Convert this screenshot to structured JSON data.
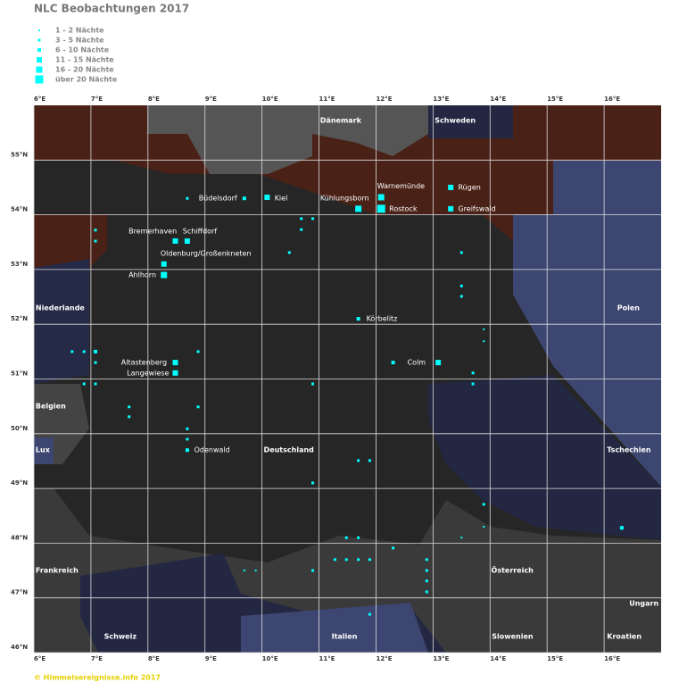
{
  "title": "NLC Beobachtungen 2017",
  "legend": [
    "1 - 2 Nächte",
    "3 - 5 Nächte",
    "6 - 10 Nächte",
    "11 - 15 Nächte",
    "16 - 20 Nächte",
    "über 20 Nächte"
  ],
  "footer": "© Himmelsereignisse.info 2017",
  "lonlim": [
    6,
    17
  ],
  "latlim": [
    46,
    56
  ],
  "lonticks": [
    {
      "value": 6,
      "label": "6°E"
    },
    {
      "value": 7,
      "label": "7°E"
    },
    {
      "value": 8,
      "label": "8°E"
    },
    {
      "value": 9,
      "label": "9°E"
    },
    {
      "value": 10,
      "label": "10°E"
    },
    {
      "value": 11,
      "label": "11°E"
    },
    {
      "value": 12,
      "label": "12°E"
    },
    {
      "value": 13,
      "label": "13°E"
    },
    {
      "value": 14,
      "label": "14°E"
    },
    {
      "value": 15,
      "label": "15°E"
    },
    {
      "value": 16,
      "label": "16°E"
    }
  ],
  "latticks": [
    {
      "value": 55,
      "label": "55°N"
    },
    {
      "value": 54,
      "label": "54°N"
    },
    {
      "value": 53,
      "label": "53°N"
    },
    {
      "value": 52,
      "label": "52°N"
    },
    {
      "value": 51,
      "label": "51°N"
    },
    {
      "value": 50,
      "label": "50°N"
    },
    {
      "value": 49,
      "label": "49°N"
    },
    {
      "value": 48,
      "label": "48°N"
    },
    {
      "value": 47,
      "label": "47°N"
    },
    {
      "value": 46,
      "label": "46°N"
    }
  ],
  "places": [
    {
      "text": "Dänemark",
      "lon": 11.02,
      "lat": 55.72,
      "country": true
    },
    {
      "text": "Schweden",
      "lon": 13.03,
      "lat": 55.72,
      "country": true
    },
    {
      "text": "Büdelsdorf",
      "lon": 8.89,
      "lat": 54.3
    },
    {
      "text": "Kiel",
      "lon": 10.22,
      "lat": 54.3
    },
    {
      "text": "Kühlungsborn",
      "lon": 11.02,
      "lat": 54.3
    },
    {
      "text": "Warnemünde",
      "lon": 12.02,
      "lat": 54.52
    },
    {
      "text": "Rügen",
      "lon": 13.44,
      "lat": 54.5
    },
    {
      "text": "Rostock",
      "lon": 12.23,
      "lat": 54.11
    },
    {
      "text": "Greifswald",
      "lon": 13.44,
      "lat": 54.11
    },
    {
      "text": "Bremerhaven",
      "lon": 7.66,
      "lat": 53.7
    },
    {
      "text": "Schiffdorf",
      "lon": 8.61,
      "lat": 53.7
    },
    {
      "text": "Oldenburg/Großenkneten",
      "lon": 8.22,
      "lat": 53.29
    },
    {
      "text": "Ahlhorn",
      "lon": 7.66,
      "lat": 52.9
    },
    {
      "text": "Niederlande",
      "lon": 6.03,
      "lat": 52.3,
      "country": true
    },
    {
      "text": "Polen",
      "lon": 16.23,
      "lat": 52.3,
      "country": true
    },
    {
      "text": "Körbelitz",
      "lon": 11.83,
      "lat": 52.1
    },
    {
      "text": "Altastenberg",
      "lon": 7.53,
      "lat": 51.3
    },
    {
      "text": "Langewiese",
      "lon": 7.63,
      "lat": 51.11
    },
    {
      "text": "Colm",
      "lon": 12.55,
      "lat": 51.3
    },
    {
      "text": "Belgien",
      "lon": 6.03,
      "lat": 50.5,
      "country": true
    },
    {
      "text": "Lux",
      "lon": 6.03,
      "lat": 49.7,
      "country": true
    },
    {
      "text": "Odenwald",
      "lon": 8.81,
      "lat": 49.7
    },
    {
      "text": "Deutschland",
      "lon": 10.03,
      "lat": 49.7,
      "country": true
    },
    {
      "text": "Tschechien",
      "lon": 16.05,
      "lat": 49.7,
      "country": true
    },
    {
      "text": "Frankreich",
      "lon": 6.03,
      "lat": 47.5,
      "country": true
    },
    {
      "text": "Österreich",
      "lon": 14.02,
      "lat": 47.5,
      "country": true
    },
    {
      "text": "Ungarn",
      "lon": 16.44,
      "lat": 46.9,
      "country": true
    },
    {
      "text": "Schweiz",
      "lon": 7.23,
      "lat": 46.29,
      "country": true
    },
    {
      "text": "Italien",
      "lon": 11.22,
      "lat": 46.29,
      "country": true
    },
    {
      "text": "Slowenien",
      "lon": 14.03,
      "lat": 46.29,
      "country": true
    },
    {
      "text": "Kroatien",
      "lon": 16.05,
      "lat": 46.29,
      "country": true
    }
  ],
  "markers": [
    {
      "lon": 13.31,
      "lat": 54.5,
      "class": 4
    },
    {
      "lon": 13.31,
      "lat": 54.11,
      "class": 4
    },
    {
      "lon": 12.09,
      "lat": 54.32,
      "class": 5
    },
    {
      "lon": 12.09,
      "lat": 54.11,
      "class": 6
    },
    {
      "lon": 11.69,
      "lat": 54.11,
      "class": 5
    },
    {
      "lon": 10.09,
      "lat": 54.32,
      "class": 4
    },
    {
      "lon": 9.69,
      "lat": 54.3,
      "class": 3
    },
    {
      "lon": 8.69,
      "lat": 54.3,
      "class": 2
    },
    {
      "lon": 8.48,
      "lat": 53.52,
      "class": 4
    },
    {
      "lon": 8.69,
      "lat": 53.52,
      "class": 4
    },
    {
      "lon": 8.28,
      "lat": 53.1,
      "class": 4
    },
    {
      "lon": 8.28,
      "lat": 52.9,
      "class": 5
    },
    {
      "lon": 11.69,
      "lat": 52.1,
      "class": 3
    },
    {
      "lon": 13.09,
      "lat": 51.3,
      "class": 4
    },
    {
      "lon": 12.3,
      "lat": 51.3,
      "class": 3
    },
    {
      "lon": 8.48,
      "lat": 51.3,
      "class": 4
    },
    {
      "lon": 8.48,
      "lat": 51.11,
      "class": 4
    },
    {
      "lon": 8.69,
      "lat": 49.7,
      "class": 3
    },
    {
      "lon": 8.69,
      "lat": 49.9,
      "class": 2
    },
    {
      "lon": 8.69,
      "lat": 50.09,
      "class": 2
    },
    {
      "lon": 16.31,
      "lat": 48.28,
      "class": 3
    },
    {
      "lon": 10.89,
      "lat": 49.1,
      "class": 2
    },
    {
      "lon": 11.69,
      "lat": 49.51,
      "class": 2
    },
    {
      "lon": 11.89,
      "lat": 49.51,
      "class": 2
    },
    {
      "lon": 7.08,
      "lat": 53.72,
      "class": 2
    },
    {
      "lon": 7.08,
      "lat": 53.52,
      "class": 2
    },
    {
      "lon": 6.67,
      "lat": 51.5,
      "class": 2
    },
    {
      "lon": 6.88,
      "lat": 51.5,
      "class": 2
    },
    {
      "lon": 7.08,
      "lat": 51.5,
      "class": 3
    },
    {
      "lon": 7.08,
      "lat": 51.3,
      "class": 2
    },
    {
      "lon": 7.67,
      "lat": 50.49,
      "class": 2
    },
    {
      "lon": 7.67,
      "lat": 50.31,
      "class": 2
    },
    {
      "lon": 7.08,
      "lat": 50.91,
      "class": 2
    },
    {
      "lon": 6.88,
      "lat": 50.91,
      "class": 2
    },
    {
      "lon": 8.88,
      "lat": 51.5,
      "class": 2
    },
    {
      "lon": 8.88,
      "lat": 50.49,
      "class": 2
    },
    {
      "lon": 10.69,
      "lat": 53.93,
      "class": 2
    },
    {
      "lon": 10.89,
      "lat": 53.93,
      "class": 2
    },
    {
      "lon": 10.69,
      "lat": 53.73,
      "class": 2
    },
    {
      "lon": 10.48,
      "lat": 53.31,
      "class": 2
    },
    {
      "lon": 13.5,
      "lat": 53.31,
      "class": 2
    },
    {
      "lon": 13.5,
      "lat": 52.7,
      "class": 2
    },
    {
      "lon": 13.5,
      "lat": 52.51,
      "class": 2
    },
    {
      "lon": 13.89,
      "lat": 51.91,
      "class": 1
    },
    {
      "lon": 13.89,
      "lat": 51.69,
      "class": 1
    },
    {
      "lon": 13.7,
      "lat": 51.11,
      "class": 2
    },
    {
      "lon": 13.7,
      "lat": 50.91,
      "class": 2
    },
    {
      "lon": 10.89,
      "lat": 50.91,
      "class": 2
    },
    {
      "lon": 11.48,
      "lat": 48.1,
      "class": 2
    },
    {
      "lon": 11.69,
      "lat": 48.1,
      "class": 2
    },
    {
      "lon": 12.3,
      "lat": 47.91,
      "class": 2
    },
    {
      "lon": 11.28,
      "lat": 47.7,
      "class": 2
    },
    {
      "lon": 11.48,
      "lat": 47.7,
      "class": 2
    },
    {
      "lon": 11.69,
      "lat": 47.7,
      "class": 2
    },
    {
      "lon": 11.89,
      "lat": 47.7,
      "class": 2
    },
    {
      "lon": 10.89,
      "lat": 47.5,
      "class": 2
    },
    {
      "lon": 12.89,
      "lat": 47.7,
      "class": 2
    },
    {
      "lon": 12.89,
      "lat": 47.5,
      "class": 2
    },
    {
      "lon": 12.89,
      "lat": 47.31,
      "class": 2
    },
    {
      "lon": 12.89,
      "lat": 47.11,
      "class": 2
    },
    {
      "lon": 11.89,
      "lat": 46.7,
      "class": 2
    },
    {
      "lon": 13.89,
      "lat": 48.71,
      "class": 2
    },
    {
      "lon": 13.89,
      "lat": 48.3,
      "class": 1
    },
    {
      "lon": 13.5,
      "lat": 48.1,
      "class": 1
    },
    {
      "lon": 9.69,
      "lat": 47.5,
      "class": 1
    },
    {
      "lon": 9.89,
      "lat": 47.5,
      "class": 1
    }
  ]
}
